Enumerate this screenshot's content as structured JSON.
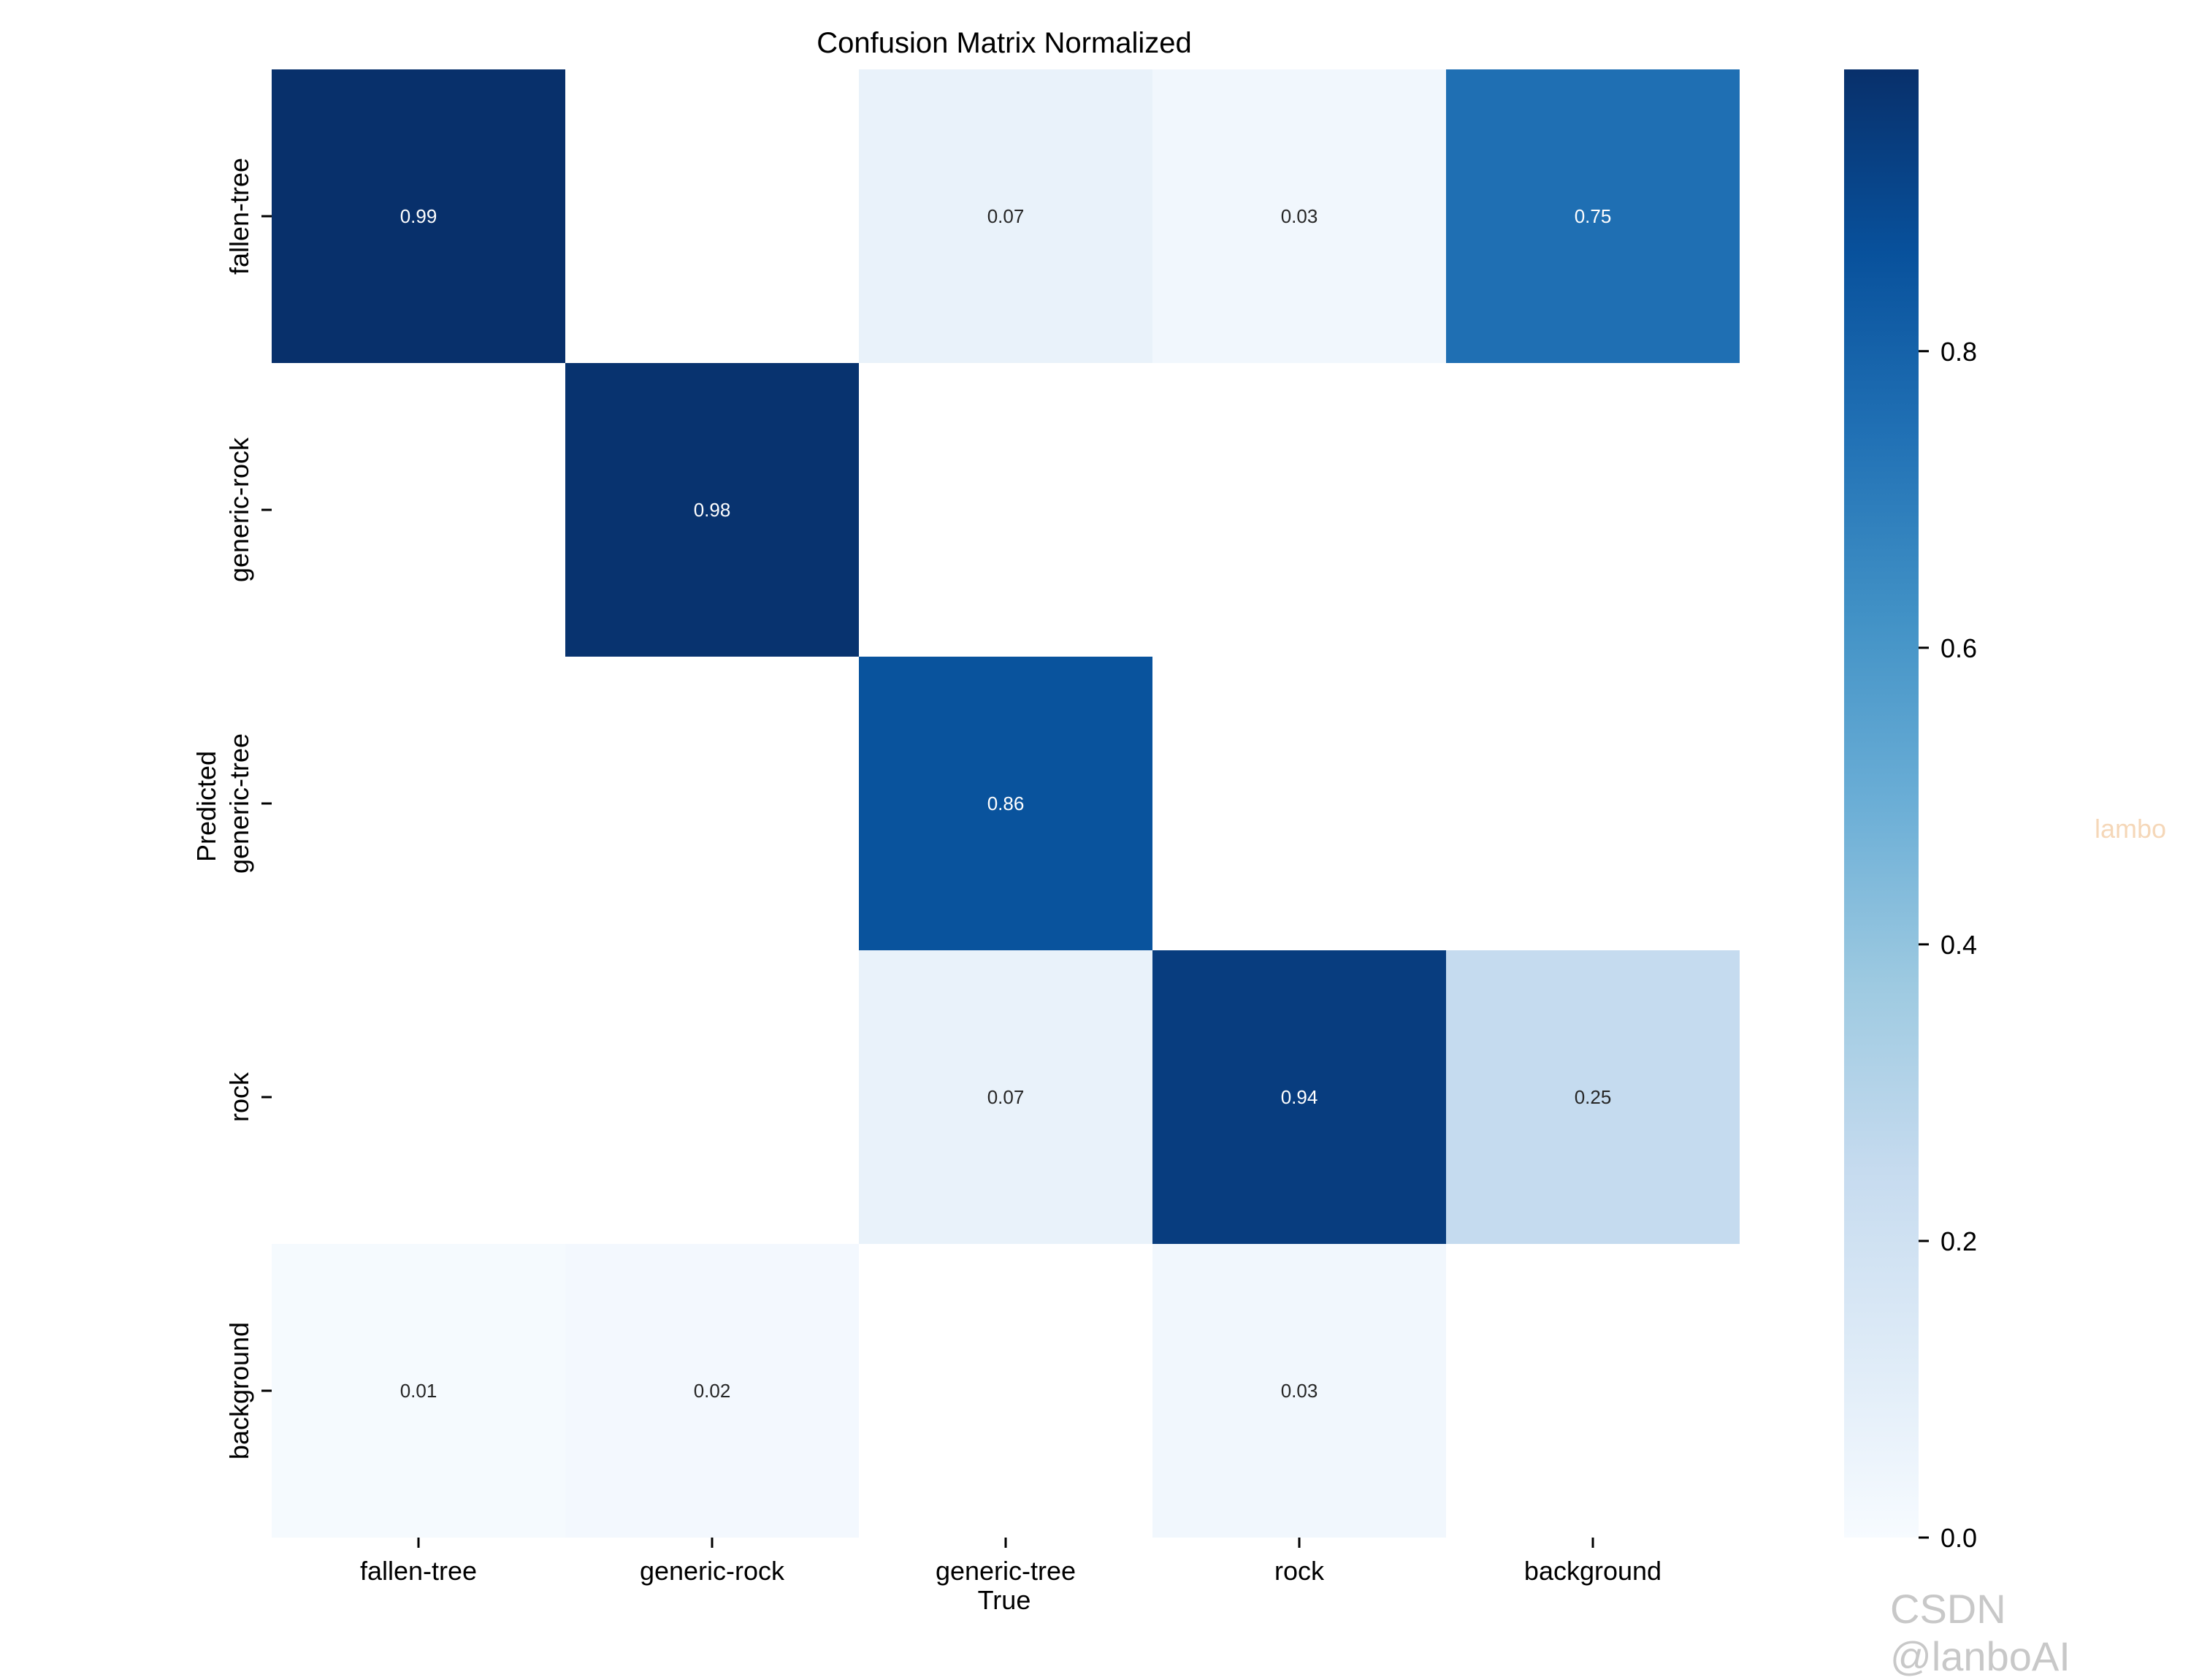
{
  "chart_data": {
    "type": "heatmap",
    "title": "Confusion Matrix Normalized",
    "xlabel": "True",
    "ylabel": "Predicted",
    "x_categories": [
      "fallen-tree",
      "generic-rock",
      "generic-tree",
      "rock",
      "background"
    ],
    "y_categories": [
      "fallen-tree",
      "generic-rock",
      "generic-tree",
      "rock",
      "background"
    ],
    "values": [
      [
        0.99,
        0.0,
        0.07,
        0.03,
        0.75
      ],
      [
        0.0,
        0.98,
        0.0,
        0.0,
        0.0
      ],
      [
        0.0,
        0.0,
        0.86,
        0.0,
        0.0
      ],
      [
        0.0,
        0.0,
        0.07,
        0.94,
        0.25
      ],
      [
        0.01,
        0.02,
        0.0,
        0.03,
        0.0
      ]
    ],
    "cell_labels": [
      [
        "0.99",
        "",
        "0.07",
        "0.03",
        "0.75"
      ],
      [
        "",
        "0.98",
        "",
        "",
        ""
      ],
      [
        "",
        "",
        "0.86",
        "",
        ""
      ],
      [
        "",
        "",
        "0.07",
        "0.94",
        "0.25"
      ],
      [
        "0.01",
        "0.02",
        "",
        "0.03",
        ""
      ]
    ],
    "colormap": "Blues",
    "colorbar": {
      "range": [
        0,
        0.99
      ],
      "ticks": [
        0.0,
        0.2,
        0.4,
        0.6,
        0.8
      ],
      "tick_labels": [
        "0.0",
        "0.2",
        "0.4",
        "0.6",
        "0.8"
      ]
    }
  },
  "watermarks": {
    "side": "lambo",
    "corner": "CSDN @lanboAI"
  }
}
